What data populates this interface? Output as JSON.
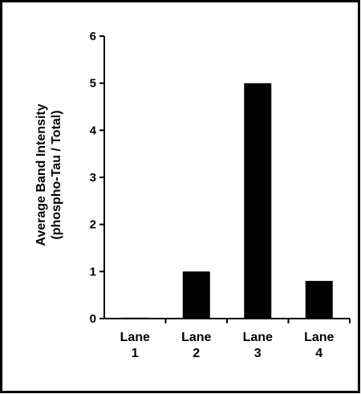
{
  "chart_data": {
    "type": "bar",
    "title": "",
    "xlabel": "",
    "ylabel": "Average Band Intensity",
    "ylabel_line2": "(phospho-Tau / Total)",
    "categories": [
      [
        "Lane",
        "1"
      ],
      [
        "Lane",
        "2"
      ],
      [
        "Lane",
        "3"
      ],
      [
        "Lane",
        "4"
      ]
    ],
    "values": [
      0.02,
      1.0,
      5.0,
      0.8
    ],
    "ylim": [
      0,
      6
    ],
    "yticks": [
      0,
      1,
      2,
      3,
      4,
      5,
      6
    ],
    "grid": false,
    "legend": "none",
    "bar_color": "#000000",
    "axis_color": "#000000"
  }
}
